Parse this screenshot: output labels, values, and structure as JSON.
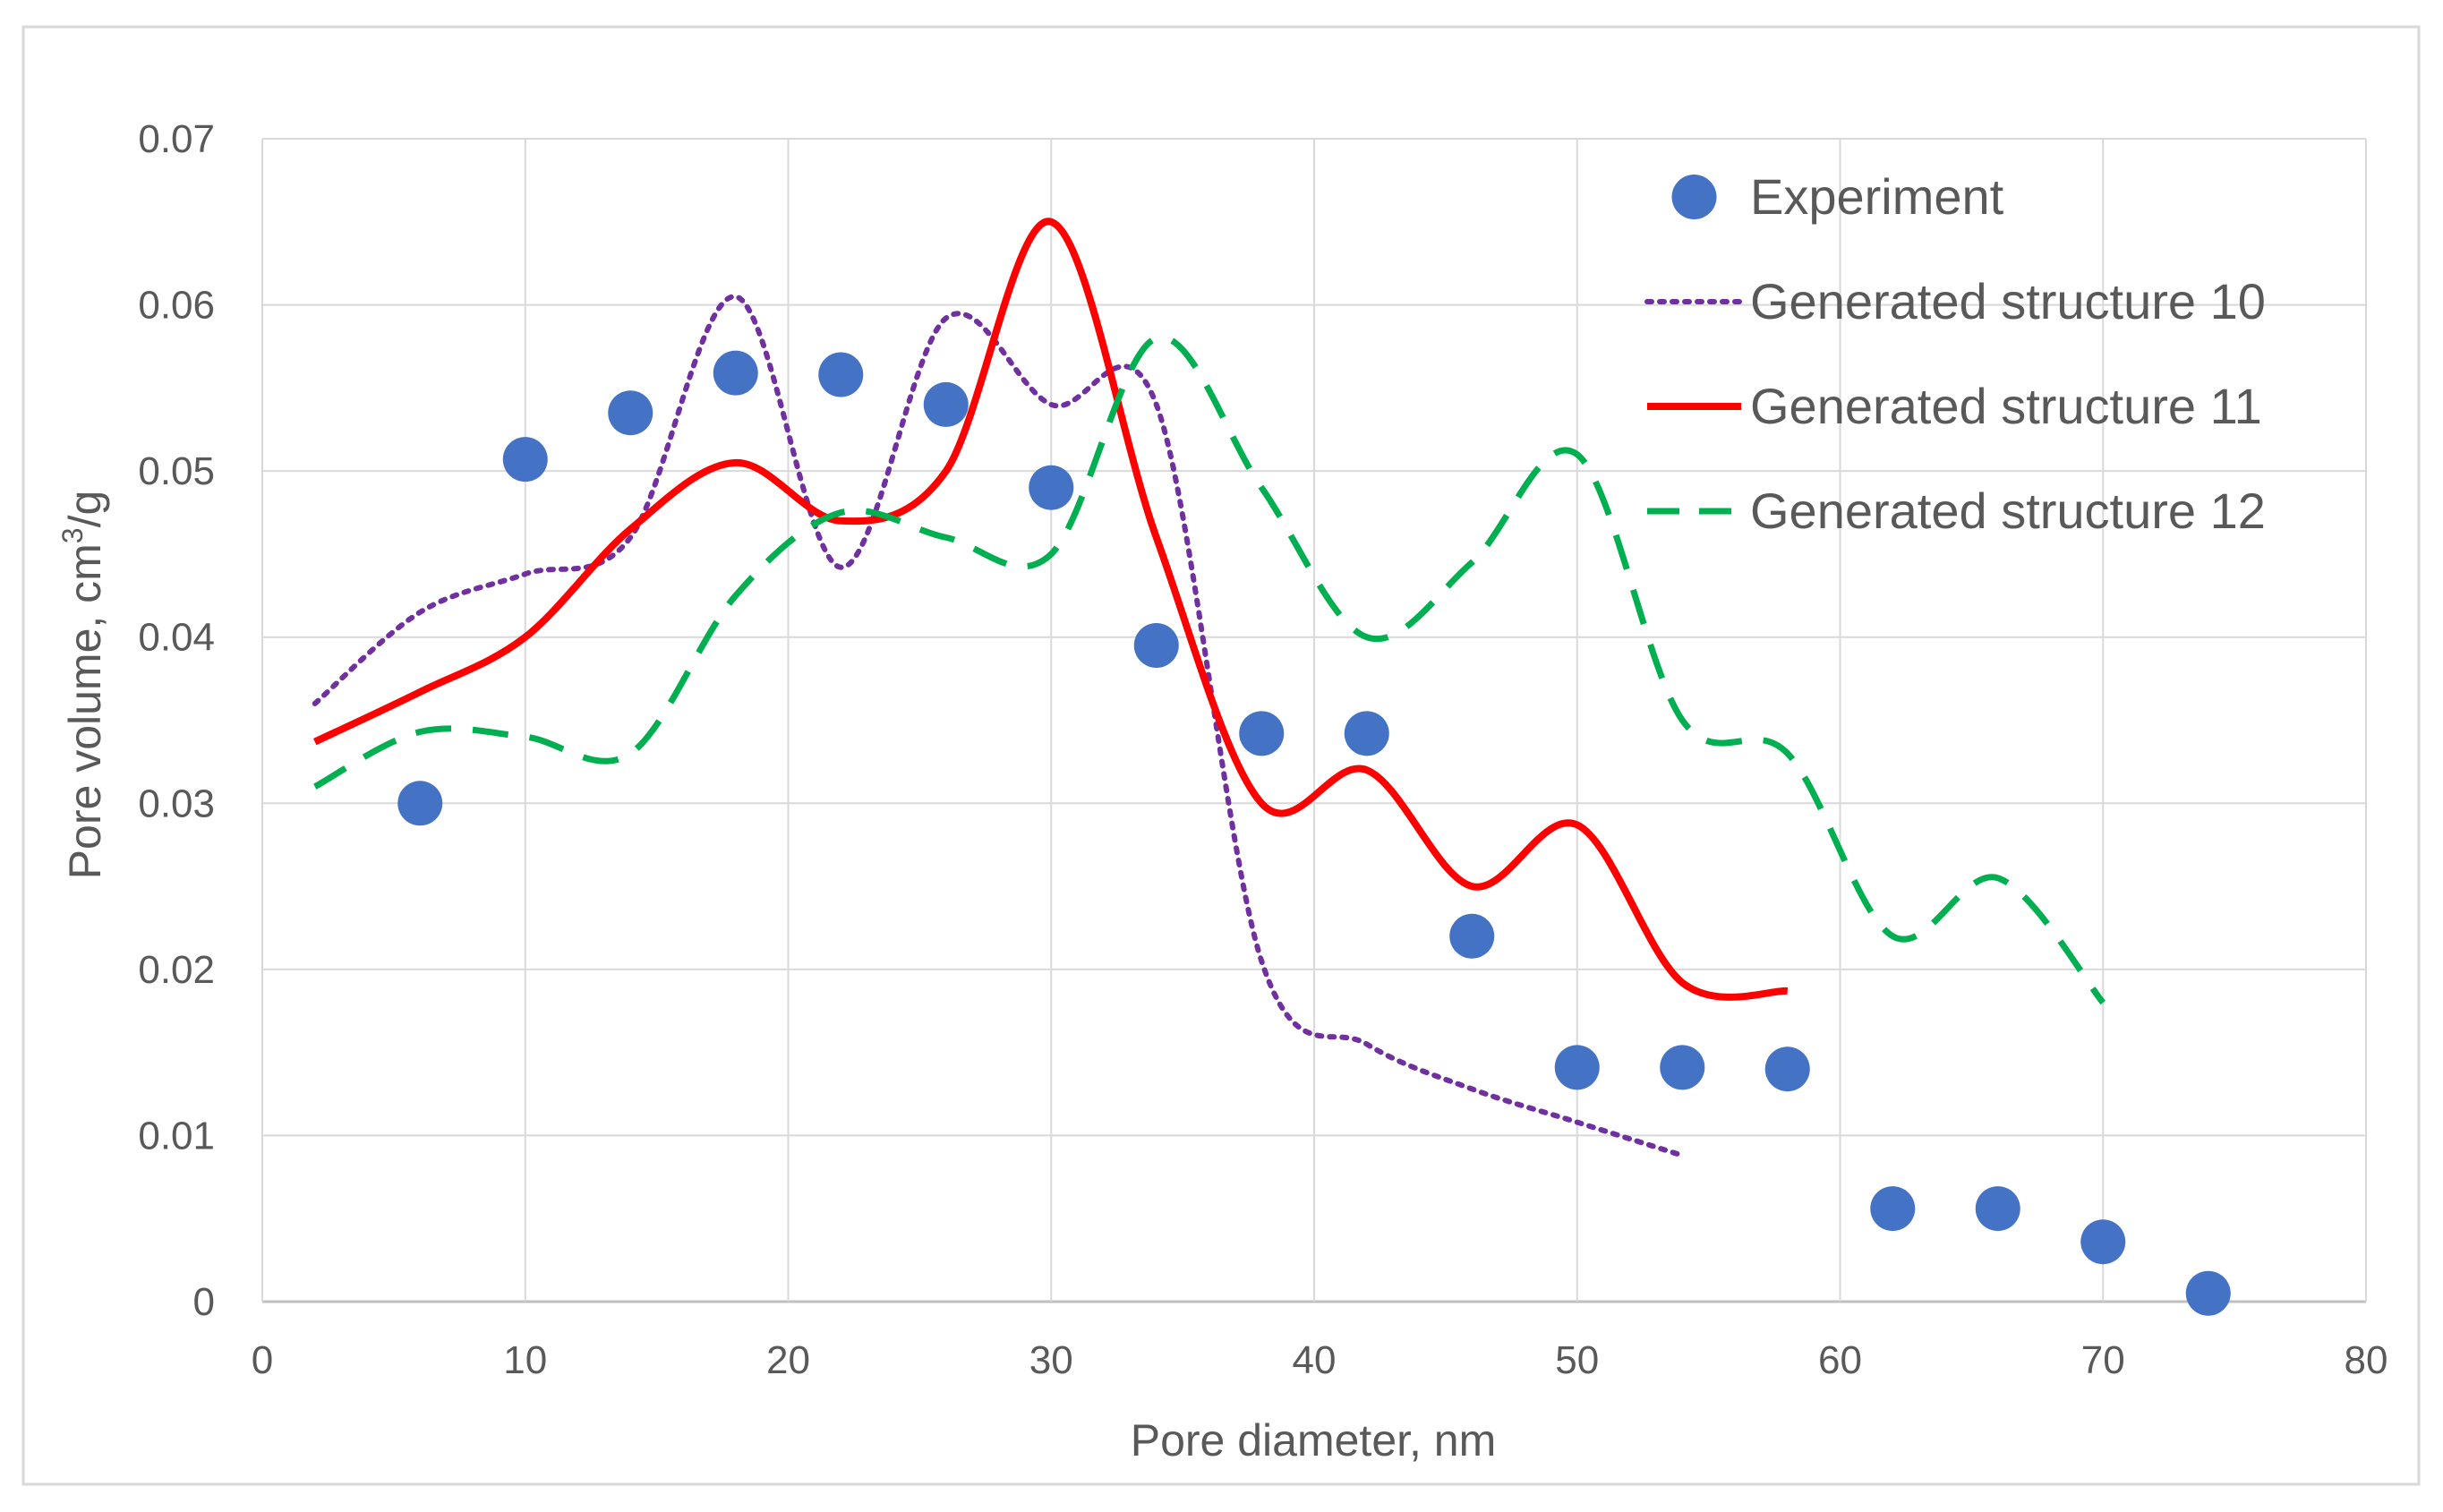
{
  "chart_data": {
    "type": "scatter",
    "title": "",
    "xlabel": "Pore diameter,  nm",
    "ylabel_main": "Pore volume, cm",
    "ylabel_sup": "3",
    "ylabel_tail": "/g",
    "xlim": [
      0,
      80
    ],
    "ylim": [
      0,
      0.07
    ],
    "x_ticks": [
      0,
      10,
      20,
      30,
      40,
      50,
      60,
      70,
      80
    ],
    "y_ticks": [
      0,
      0.01,
      0.02,
      0.03,
      0.04,
      0.05,
      0.06,
      0.07
    ],
    "x_tick_labels": [
      "0",
      "10",
      "20",
      "30",
      "40",
      "50",
      "60",
      "70",
      "80"
    ],
    "y_tick_labels": [
      "0",
      "0.01",
      "0.02",
      "0.03",
      "0.04",
      "0.05",
      "0.06",
      "0.07"
    ],
    "grid": true,
    "legend_position": "top-right",
    "series": [
      {
        "name": "Experiment",
        "style": "markers",
        "color": "#4472C4",
        "x": [
          6,
          10,
          14,
          18,
          22,
          26,
          30,
          34,
          38,
          42,
          46,
          50,
          54,
          58,
          62,
          66,
          70,
          74
        ],
        "y": [
          0.03,
          0.0507,
          0.0535,
          0.0559,
          0.0558,
          0.054,
          0.049,
          0.0395,
          0.0342,
          0.0342,
          0.022,
          0.0141,
          0.0141,
          0.014,
          0.0056,
          0.0056,
          0.0036,
          0.0005
        ]
      },
      {
        "name": "Generated structure 10",
        "style": "dotted",
        "color": "#7030A0",
        "x": [
          2,
          6,
          10,
          14,
          18,
          22,
          26,
          30,
          34,
          38,
          42,
          46,
          50,
          54
        ],
        "y": [
          0.036,
          0.0415,
          0.0438,
          0.046,
          0.0605,
          0.0442,
          0.0592,
          0.054,
          0.054,
          0.0205,
          0.0155,
          0.0128,
          0.0108,
          0.0088
        ]
      },
      {
        "name": "Generated structure 11",
        "style": "solid",
        "color": "#FF0000",
        "x": [
          2,
          6,
          10,
          14,
          18,
          22,
          26,
          30,
          34,
          38,
          42,
          46,
          50,
          54,
          58
        ],
        "y": [
          0.0337,
          0.0367,
          0.04,
          0.0465,
          0.0505,
          0.047,
          0.05,
          0.065,
          0.046,
          0.03,
          0.032,
          0.025,
          0.0287,
          0.0192,
          0.0187
        ]
      },
      {
        "name": "Generated structure 12",
        "style": "dashed",
        "color": "#00B050",
        "x": [
          2,
          6,
          10,
          14,
          18,
          22,
          26,
          30,
          34,
          38,
          42,
          46,
          50,
          54,
          58,
          62,
          66,
          70
        ],
        "y": [
          0.031,
          0.0343,
          0.034,
          0.033,
          0.0425,
          0.0475,
          0.046,
          0.045,
          0.058,
          0.049,
          0.04,
          0.0445,
          0.051,
          0.035,
          0.033,
          0.022,
          0.0255,
          0.018
        ]
      }
    ]
  }
}
